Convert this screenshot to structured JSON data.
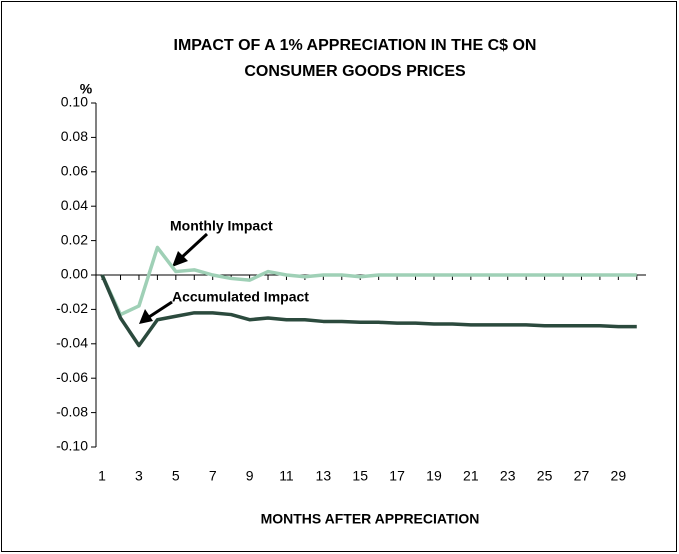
{
  "chart_data": {
    "type": "line",
    "title": [
      "IMPACT OF A 1% APPRECIATION IN THE C$  ON",
      "CONSUMER GOODS PRICES"
    ],
    "y_unit_label": "%",
    "x_axis_label": "MONTHS AFTER APPRECIATION",
    "x": [
      1,
      2,
      3,
      4,
      5,
      6,
      7,
      8,
      9,
      10,
      11,
      12,
      13,
      14,
      15,
      16,
      17,
      18,
      19,
      20,
      21,
      22,
      23,
      24,
      25,
      26,
      27,
      28,
      29,
      30
    ],
    "series": [
      {
        "name": "Monthly Impact",
        "color": "#9fd0b6",
        "values": [
          0,
          -0.023,
          -0.018,
          0.016,
          0.002,
          0.003,
          0,
          -0.002,
          -0.003,
          0.002,
          0,
          -0.001,
          0,
          0,
          -0.001,
          0,
          0,
          0,
          0,
          0,
          0,
          0,
          0,
          0,
          0,
          0,
          0,
          0,
          0,
          0
        ]
      },
      {
        "name": "Accumulated Impact",
        "color": "#2b4a3d",
        "values": [
          0,
          -0.025,
          -0.041,
          -0.026,
          -0.024,
          -0.022,
          -0.022,
          -0.023,
          -0.026,
          -0.025,
          -0.026,
          -0.026,
          -0.027,
          -0.027,
          -0.0275,
          -0.0275,
          -0.028,
          -0.028,
          -0.0285,
          -0.0285,
          -0.029,
          -0.029,
          -0.029,
          -0.029,
          -0.0295,
          -0.0295,
          -0.0295,
          -0.0295,
          -0.03,
          -0.03
        ]
      }
    ],
    "xlim": [
      0.67,
      30.5
    ],
    "xticks": [
      1,
      3,
      5,
      7,
      9,
      11,
      13,
      15,
      17,
      19,
      21,
      23,
      25,
      27,
      29
    ],
    "ylim": [
      -0.1,
      0.1
    ],
    "yticks": [
      {
        "value": -0.1,
        "label": "-0.10"
      },
      {
        "value": -0.08,
        "label": "-0.08"
      },
      {
        "value": -0.06,
        "label": "-0.06"
      },
      {
        "value": -0.04,
        "label": "-0.04"
      },
      {
        "value": -0.02,
        "label": "-0.02"
      },
      {
        "value": 0,
        "label": "0.00"
      },
      {
        "value": 0.02,
        "label": "0.02"
      },
      {
        "value": 0.04,
        "label": "0.04"
      },
      {
        "value": 0.06,
        "label": "0.06"
      },
      {
        "value": 0.08,
        "label": "0.08"
      },
      {
        "value": 0.1,
        "label": "0.10"
      }
    ],
    "grid": false
  }
}
